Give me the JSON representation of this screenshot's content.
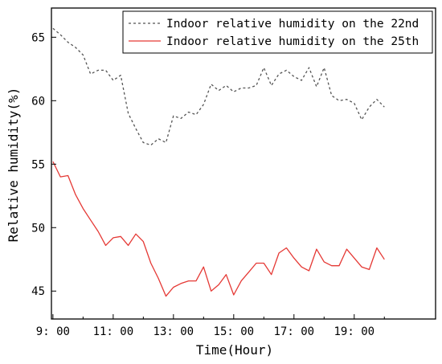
{
  "chart_data": {
    "type": "line",
    "xlabel": "Time(Hour)",
    "ylabel": "Relative humidity(%)",
    "x_ticks": [
      {
        "value": 9,
        "label": "9: 00"
      },
      {
        "value": 11,
        "label": "11: 00"
      },
      {
        "value": 13,
        "label": "13: 00"
      },
      {
        "value": 15,
        "label": "15: 00"
      },
      {
        "value": 17,
        "label": "17: 00"
      },
      {
        "value": 19,
        "label": "19: 00"
      }
    ],
    "y_ticks": [
      45,
      50,
      55,
      60,
      65
    ],
    "xlim": [
      8.95,
      21.7
    ],
    "ylim": [
      42.8,
      67.3
    ],
    "legend_position": "top-right",
    "grid": false,
    "series": [
      {
        "name": "Indoor relative humidity on the 22nd",
        "color": "#555555",
        "style": "dashed",
        "points": [
          [
            9.0,
            65.7
          ],
          [
            9.25,
            65.2
          ],
          [
            9.5,
            64.6
          ],
          [
            9.75,
            64.2
          ],
          [
            10.0,
            63.6
          ],
          [
            10.25,
            62.1
          ],
          [
            10.5,
            62.4
          ],
          [
            10.75,
            62.4
          ],
          [
            11.0,
            61.6
          ],
          [
            11.25,
            62.0
          ],
          [
            11.5,
            59.0
          ],
          [
            11.75,
            57.8
          ],
          [
            12.0,
            56.7
          ],
          [
            12.25,
            56.5
          ],
          [
            12.5,
            57.0
          ],
          [
            12.75,
            56.7
          ],
          [
            13.0,
            58.8
          ],
          [
            13.25,
            58.6
          ],
          [
            13.5,
            59.1
          ],
          [
            13.75,
            58.9
          ],
          [
            14.0,
            59.7
          ],
          [
            14.25,
            61.3
          ],
          [
            14.5,
            60.8
          ],
          [
            14.75,
            61.2
          ],
          [
            15.0,
            60.7
          ],
          [
            15.25,
            61.0
          ],
          [
            15.5,
            61.0
          ],
          [
            15.75,
            61.2
          ],
          [
            16.0,
            62.6
          ],
          [
            16.25,
            61.2
          ],
          [
            16.5,
            62.1
          ],
          [
            16.75,
            62.4
          ],
          [
            17.0,
            61.9
          ],
          [
            17.25,
            61.6
          ],
          [
            17.5,
            62.6
          ],
          [
            17.75,
            61.1
          ],
          [
            18.0,
            62.6
          ],
          [
            18.25,
            60.4
          ],
          [
            18.5,
            60.0
          ],
          [
            18.75,
            60.1
          ],
          [
            19.0,
            59.8
          ],
          [
            19.25,
            58.5
          ],
          [
            19.5,
            59.5
          ],
          [
            19.75,
            60.1
          ],
          [
            20.0,
            59.5
          ]
        ]
      },
      {
        "name": "Indoor relative humidity on the 25th",
        "color": "#e53935",
        "style": "solid",
        "points": [
          [
            9.0,
            55.2
          ],
          [
            9.25,
            54.0
          ],
          [
            9.5,
            54.1
          ],
          [
            9.75,
            52.6
          ],
          [
            10.0,
            51.5
          ],
          [
            10.25,
            50.6
          ],
          [
            10.5,
            49.7
          ],
          [
            10.75,
            48.6
          ],
          [
            11.0,
            49.2
          ],
          [
            11.25,
            49.3
          ],
          [
            11.5,
            48.6
          ],
          [
            11.75,
            49.5
          ],
          [
            12.0,
            48.9
          ],
          [
            12.25,
            47.2
          ],
          [
            12.5,
            46.0
          ],
          [
            12.75,
            44.6
          ],
          [
            13.0,
            45.3
          ],
          [
            13.25,
            45.6
          ],
          [
            13.5,
            45.8
          ],
          [
            13.75,
            45.8
          ],
          [
            14.0,
            46.9
          ],
          [
            14.25,
            45.0
          ],
          [
            14.5,
            45.5
          ],
          [
            14.75,
            46.3
          ],
          [
            15.0,
            44.7
          ],
          [
            15.25,
            45.8
          ],
          [
            15.5,
            46.5
          ],
          [
            15.75,
            47.2
          ],
          [
            16.0,
            47.2
          ],
          [
            16.25,
            46.3
          ],
          [
            16.5,
            48.0
          ],
          [
            16.75,
            48.4
          ],
          [
            17.0,
            47.6
          ],
          [
            17.25,
            46.9
          ],
          [
            17.5,
            46.6
          ],
          [
            17.75,
            48.3
          ],
          [
            18.0,
            47.3
          ],
          [
            18.25,
            47.0
          ],
          [
            18.5,
            47.0
          ],
          [
            18.75,
            48.3
          ],
          [
            19.0,
            47.6
          ],
          [
            19.25,
            46.9
          ],
          [
            19.5,
            46.7
          ],
          [
            19.75,
            48.4
          ],
          [
            20.0,
            47.5
          ]
        ]
      }
    ]
  }
}
